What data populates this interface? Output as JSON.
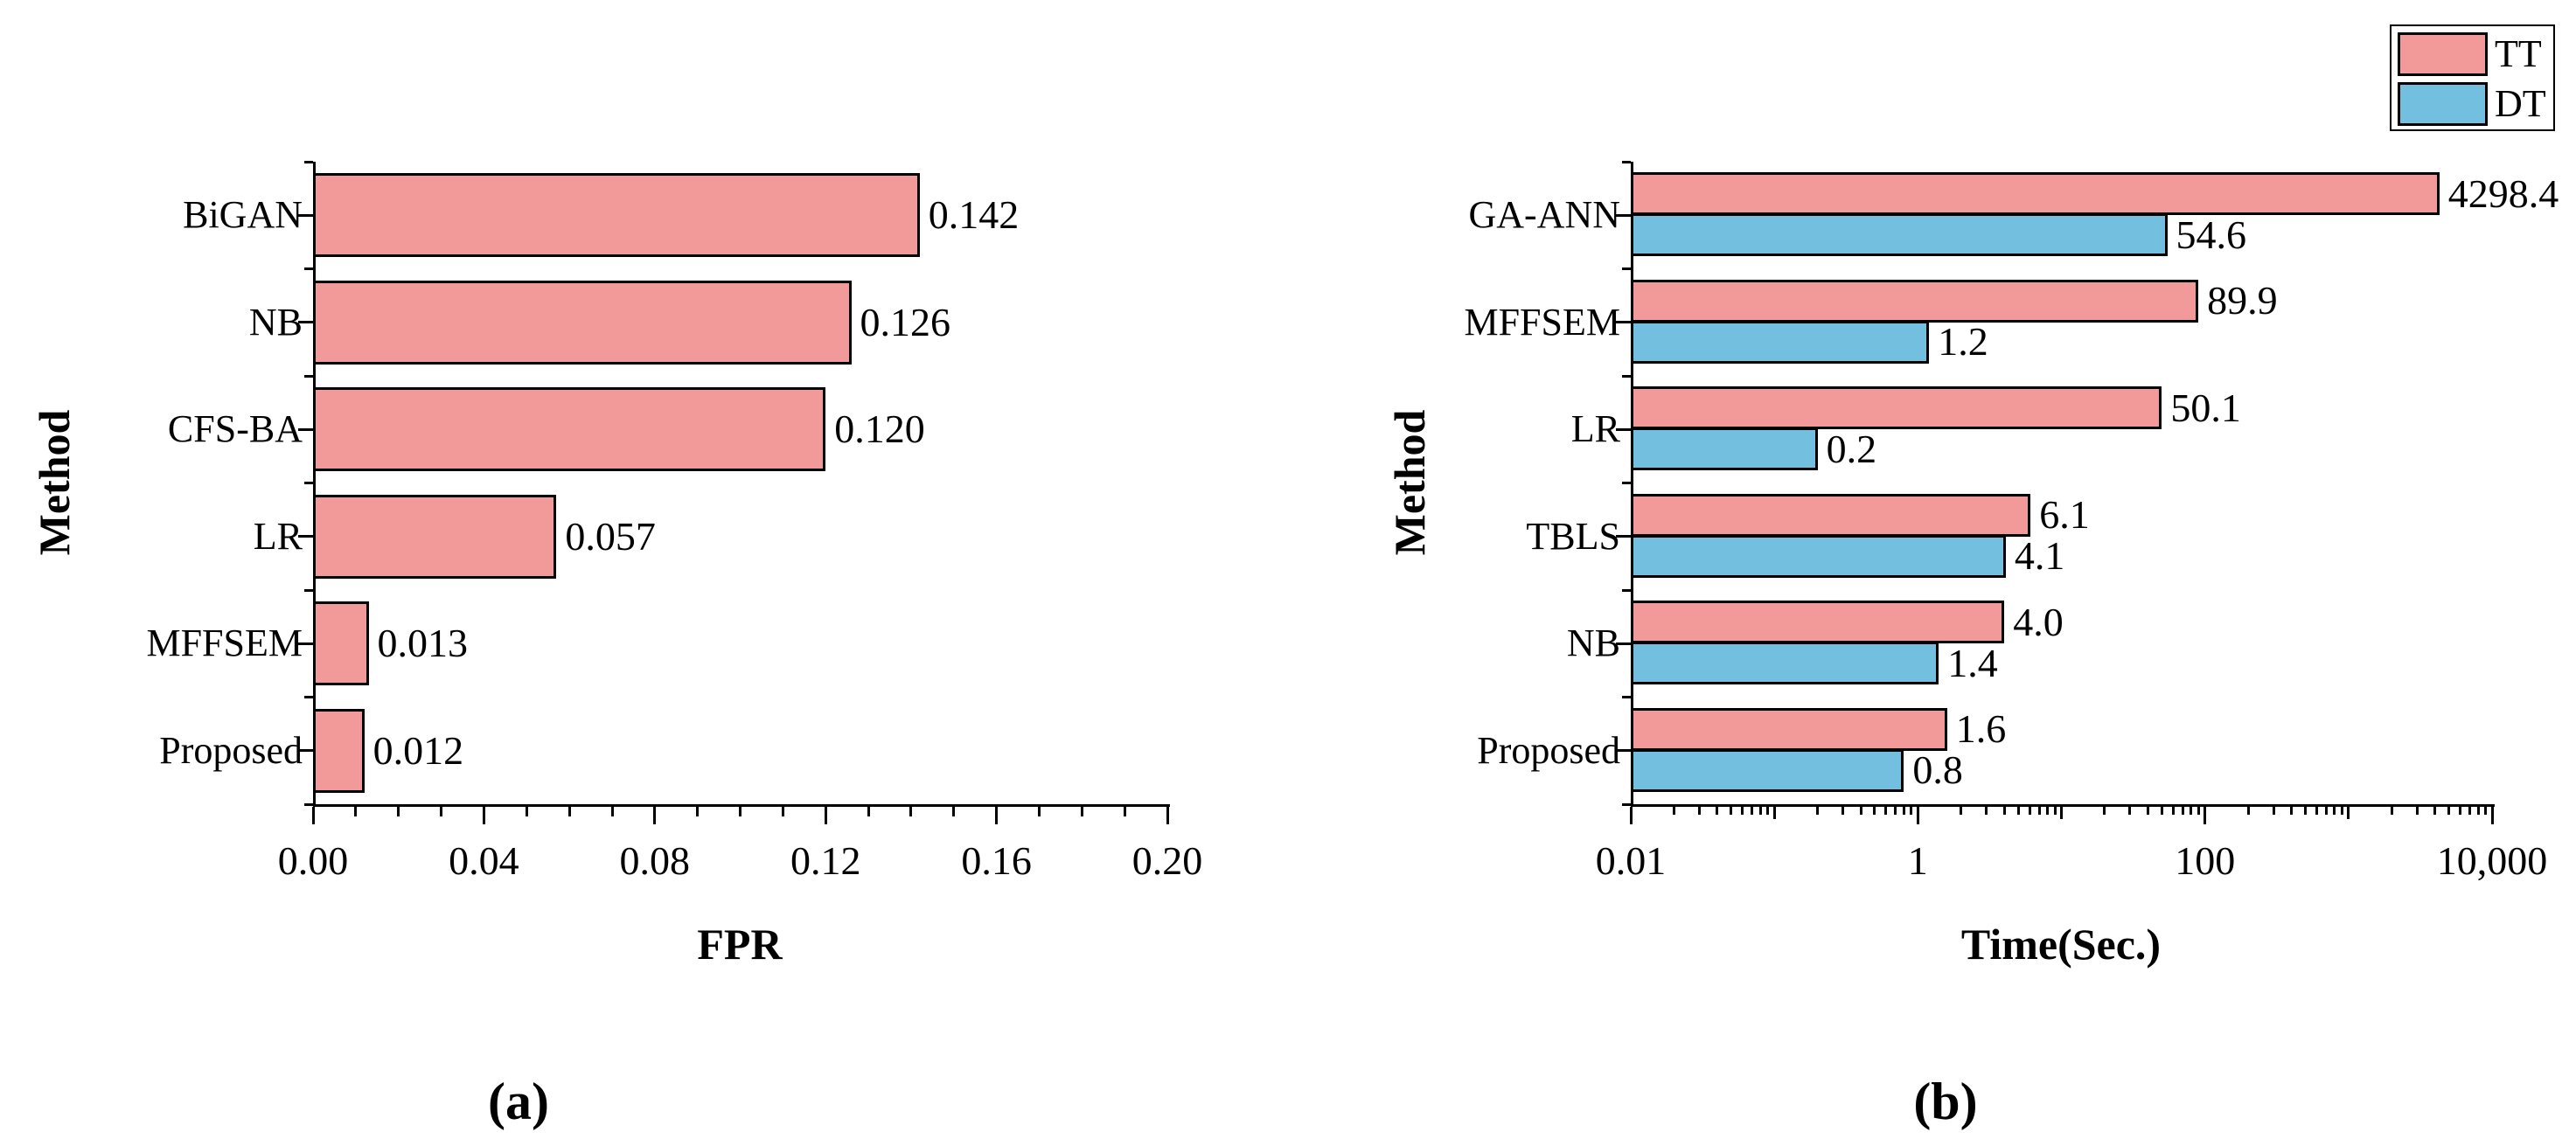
{
  "figure": {
    "background": "#ffffff",
    "text_color": "#000000",
    "stroke_color": "#000000"
  },
  "legend": {
    "position": "top-right",
    "items": [
      {
        "label": "TT",
        "color": "#F29A9A"
      },
      {
        "label": "DT",
        "color": "#73BFE0"
      }
    ]
  },
  "chart_data": [
    {
      "id": "a",
      "type": "bar",
      "orientation": "horizontal",
      "caption": "(a)",
      "xlabel": "FPR",
      "ylabel": "Method",
      "scale": "linear",
      "xlim": [
        0.0,
        0.2
      ],
      "grid": false,
      "bar_color": "#F29A9A",
      "categories": [
        "BiGAN",
        "NB",
        "CFS-BA",
        "LR",
        "MFFSEM",
        "Proposed"
      ],
      "values": [
        0.142,
        0.126,
        0.12,
        0.057,
        0.013,
        0.012
      ],
      "value_labels": [
        "0.142",
        "0.126",
        "0.120",
        "0.057",
        "0.013",
        "0.012"
      ],
      "x_major_tick_labels": [
        "0.00",
        "0.04",
        "0.08",
        "0.12",
        "0.16",
        "0.20"
      ],
      "x_minor_step": 0.01
    },
    {
      "id": "b",
      "type": "bar",
      "orientation": "horizontal",
      "caption": "(b)",
      "xlabel": "Time(Sec.)",
      "ylabel": "Method",
      "scale": "log",
      "xlim": [
        0.01,
        10000
      ],
      "grid": false,
      "legend_position": "top-right",
      "categories": [
        "GA-ANN",
        "MFFSEM",
        "LR",
        "TBLS",
        "NB",
        "Proposed"
      ],
      "series": [
        {
          "name": "TT",
          "color": "#F29A9A",
          "values": [
            4298.4,
            89.9,
            50.1,
            6.1,
            4.0,
            1.6
          ],
          "value_labels": [
            "4298.4",
            "89.9",
            "50.1",
            "6.1",
            "4.0",
            "1.6"
          ]
        },
        {
          "name": "DT",
          "color": "#73BFE0",
          "values": [
            54.6,
            1.2,
            0.2,
            4.1,
            1.4,
            0.8
          ],
          "value_labels": [
            "54.6",
            "1.2",
            "0.2",
            "4.1",
            "1.4",
            "0.8"
          ]
        }
      ],
      "x_major_tick_labels": [
        "0.01",
        "1",
        "100",
        "10,000"
      ],
      "x_major_tick_log_positions": [
        -2,
        0,
        2,
        4
      ]
    }
  ]
}
